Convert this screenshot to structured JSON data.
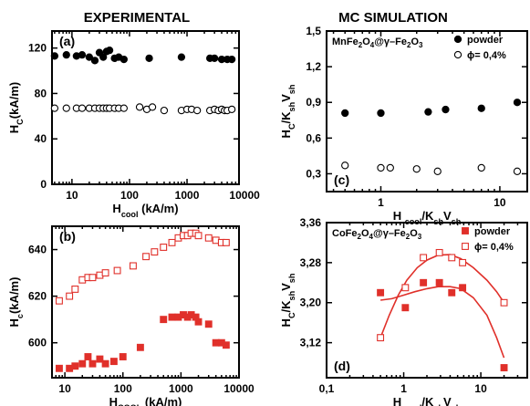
{
  "column_titles": {
    "left": "EXPERIMENTAL",
    "right": "MC SIMULATION"
  },
  "chart_data": [
    {
      "id": "a",
      "type": "scatter",
      "panel_label": "(a)",
      "xscale": "log",
      "xlim": [
        4.5,
        8000
      ],
      "ylim": [
        0,
        135
      ],
      "xticks": [
        10,
        100,
        1000,
        10000
      ],
      "xtick_labels": [
        "10",
        "100",
        "1000",
        "10000"
      ],
      "yticks": [
        0,
        40,
        80,
        120
      ],
      "ytick_labels": [
        "0",
        "40",
        "80",
        "120"
      ],
      "xlabel": "H",
      "xlabel_sub": "cool",
      "xlabel_tail": " (kA/m)",
      "ylabel": "H",
      "ylabel_sub": "C",
      "ylabel_tail": "(kA/m)",
      "series": [
        {
          "marker": "circle",
          "filled": true,
          "color": "#000000",
          "x": [
            5,
            8,
            12,
            15,
            20,
            25,
            30,
            35,
            40,
            45,
            55,
            65,
            80,
            220,
            800,
            2500,
            3000,
            4000,
            5000,
            6000
          ],
          "y": [
            113,
            114,
            113,
            114,
            112,
            109,
            116,
            112,
            117,
            118,
            111,
            112,
            110,
            111,
            112,
            111,
            111,
            110,
            110,
            110
          ]
        },
        {
          "marker": "circle",
          "filled": false,
          "color": "#000000",
          "x": [
            5,
            8,
            12,
            15,
            20,
            25,
            30,
            35,
            40,
            45,
            55,
            65,
            80,
            150,
            200,
            250,
            400,
            800,
            1000,
            1200,
            1500,
            2500,
            3000,
            3500,
            4000,
            4500,
            5000,
            6000
          ],
          "y": [
            67,
            67,
            67,
            67,
            67,
            67,
            67,
            67,
            67,
            67,
            67,
            67,
            67,
            68,
            66,
            68,
            65,
            65,
            66,
            66,
            65,
            65,
            66,
            65,
            66,
            65,
            65,
            66
          ]
        }
      ]
    },
    {
      "id": "b",
      "type": "scatter",
      "panel_label": "(b)",
      "xscale": "log",
      "xlim": [
        6,
        10000
      ],
      "ylim": [
        585,
        650
      ],
      "xticks": [
        10,
        100,
        1000,
        10000
      ],
      "xtick_labels": [
        "10",
        "100",
        "1000",
        "10000"
      ],
      "yticks": [
        600,
        620,
        640
      ],
      "ytick_labels": [
        "600",
        "620",
        "640"
      ],
      "xlabel": "H",
      "xlabel_sub": "COOL",
      "xlabel_tail": " (kA/m)",
      "ylabel": "H",
      "ylabel_sub": "c",
      "ylabel_tail": "(kA/m)",
      "series": [
        {
          "marker": "square",
          "filled": false,
          "color": "#e0302a",
          "x": [
            8,
            12,
            15,
            20,
            25,
            30,
            40,
            50,
            80,
            150,
            250,
            350,
            500,
            700,
            900,
            1100,
            1300,
            1500,
            1800,
            2000,
            3000,
            4000,
            5000,
            6000
          ],
          "y": [
            618,
            620,
            623,
            627,
            628,
            628,
            629,
            630,
            631,
            633,
            637,
            639,
            641,
            643,
            645,
            646,
            646,
            647,
            647,
            646,
            645,
            644,
            643,
            643
          ]
        },
        {
          "marker": "square",
          "filled": true,
          "color": "#e0302a",
          "x": [
            8,
            12,
            15,
            20,
            25,
            30,
            40,
            50,
            70,
            100,
            200,
            500,
            700,
            900,
            1100,
            1300,
            1500,
            1800,
            2000,
            3000,
            4000,
            5000,
            6000
          ],
          "y": [
            589,
            589,
            590,
            591,
            594,
            591,
            593,
            591,
            592,
            594,
            598,
            610,
            611,
            611,
            612,
            611,
            612,
            611,
            609,
            608,
            600,
            600,
            599
          ]
        }
      ]
    },
    {
      "id": "c",
      "type": "scatter",
      "panel_label": "(c)",
      "xscale": "log",
      "xlim": [
        0.35,
        17
      ],
      "ylim": [
        0.15,
        1.5
      ],
      "xticks": [
        1,
        10
      ],
      "xtick_labels": [
        "1",
        "10"
      ],
      "yticks": [
        0.3,
        0.6,
        0.9,
        1.2,
        1.5
      ],
      "ytick_labels": [
        "0,3",
        "0,6",
        "0,9",
        "1,2",
        "1,5"
      ],
      "xlabel": "H ",
      "xlabel_sub": "cool",
      "xlabel_tail": "/K",
      "xlabel_sub2": "sh",
      "xlabel_tail2": "V",
      "xlabel_sub3": "sh",
      "ylabel": "H",
      "ylabel_sub": "C",
      "ylabel_tail": "/K",
      "ylabel_sub2": "sh",
      "ylabel_tail2": "V",
      "ylabel_sub3": "sh",
      "title_parts": [
        "MnFe",
        "2",
        "O",
        "4",
        "@γ–Fe",
        "2",
        "O",
        "3"
      ],
      "legend": [
        "powder",
        "ϕ= 0,4%"
      ],
      "series": [
        {
          "name": "powder",
          "marker": "circle",
          "filled": true,
          "color": "#000000",
          "x": [
            0.5,
            1,
            2.5,
            3.5,
            7,
            14
          ],
          "y": [
            0.81,
            0.81,
            0.82,
            0.84,
            0.85,
            0.9
          ]
        },
        {
          "name": "ϕ= 0,4%",
          "marker": "circle",
          "filled": false,
          "color": "#000000",
          "x": [
            0.5,
            1,
            1.2,
            2,
            3,
            7,
            14
          ],
          "y": [
            0.37,
            0.35,
            0.35,
            0.34,
            0.32,
            0.35,
            0.32
          ]
        }
      ]
    },
    {
      "id": "d",
      "type": "scatter",
      "panel_label": "(d)",
      "xscale": "log",
      "xlim": [
        0.1,
        40
      ],
      "ylim": [
        3.05,
        3.36
      ],
      "xticks": [
        0.1,
        1,
        10
      ],
      "xtick_labels": [
        "0,1",
        "1",
        "10"
      ],
      "yticks": [
        3.12,
        3.2,
        3.28,
        3.36
      ],
      "ytick_labels": [
        "3,12",
        "3,20",
        "3,28",
        "3,36"
      ],
      "xlabel": "H ",
      "xlabel_sub": "cool",
      "xlabel_tail": "/K",
      "xlabel_sub2": "sh",
      "xlabel_tail2": "V",
      "xlabel_sub3": "sh",
      "ylabel": "H",
      "ylabel_sub": "C",
      "ylabel_tail": "/K",
      "ylabel_sub2": "sh",
      "ylabel_tail2": "V",
      "ylabel_sub3": "sh",
      "title_parts": [
        "CoFe",
        "2",
        "O",
        "4",
        "@γ–Fe",
        "2",
        "O",
        "3"
      ],
      "legend": [
        "powder",
        "ϕ= 0,4%"
      ],
      "series": [
        {
          "name": "powder",
          "marker": "square",
          "filled": true,
          "color": "#e0302a",
          "x": [
            0.5,
            1.05,
            1.8,
            2.9,
            4.2,
            5.8,
            20
          ],
          "y": [
            3.22,
            3.19,
            3.24,
            3.24,
            3.22,
            3.23,
            3.07
          ]
        },
        {
          "name": "ϕ= 0,4%",
          "marker": "square",
          "filled": false,
          "color": "#e0302a",
          "x": [
            0.5,
            1.05,
            1.8,
            2.9,
            4.2,
            5.8,
            20
          ],
          "y": [
            3.13,
            3.23,
            3.29,
            3.3,
            3.29,
            3.28,
            3.2
          ]
        }
      ],
      "fit_curves": [
        {
          "color": "#e0302a",
          "x": [
            0.5,
            0.7,
            1.0,
            1.4,
            2.0,
            2.8,
            4.0,
            5.5,
            8.0,
            12,
            16,
            20
          ],
          "y": [
            3.205,
            3.208,
            3.215,
            3.222,
            3.228,
            3.232,
            3.232,
            3.228,
            3.21,
            3.175,
            3.13,
            3.09
          ]
        },
        {
          "color": "#e0302a",
          "x": [
            0.5,
            0.65,
            0.85,
            1.1,
            1.5,
            2.0,
            2.8,
            4.0,
            5.5,
            8.0,
            12,
            16,
            20
          ],
          "y": [
            3.13,
            3.175,
            3.215,
            3.245,
            3.27,
            3.285,
            3.295,
            3.296,
            3.288,
            3.27,
            3.245,
            3.222,
            3.2
          ]
        }
      ]
    }
  ]
}
